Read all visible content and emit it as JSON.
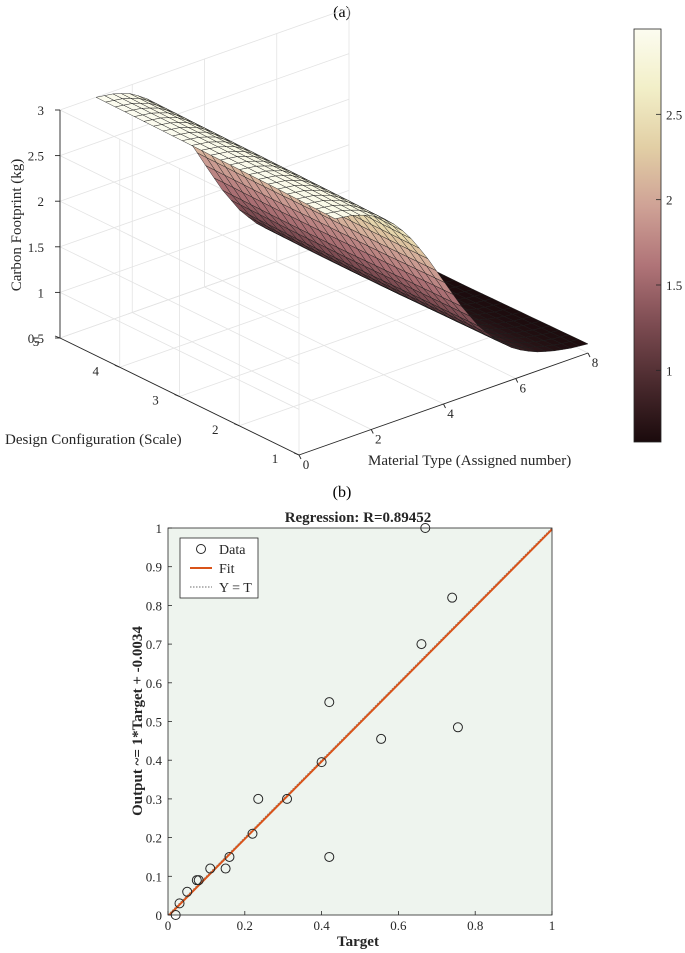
{
  "chart_data": [
    {
      "type": "surface",
      "panel_label": "(a)",
      "title": "",
      "xlabel": "Material Type (Assigned number)",
      "ylabel": "Design Configuration (Scale)",
      "zlabel": "Carbon Footprint (kg)",
      "xlim": [
        0,
        8
      ],
      "ylim": [
        1,
        5
      ],
      "zlim": [
        0.5,
        3
      ],
      "x_ticks": [
        "0",
        "2",
        "4",
        "6",
        "8"
      ],
      "y_ticks": [
        "1",
        "2",
        "3",
        "4",
        "5"
      ],
      "z_ticks": [
        "0.5",
        "1",
        "1.5",
        "2",
        "2.5",
        "3"
      ],
      "surface": {
        "x": [
          1,
          1.5,
          2,
          2.5,
          3,
          3.5,
          4,
          4.5,
          5,
          5.5,
          6,
          6.5,
          7,
          7.5,
          8
        ],
        "y_rows": [
          {
            "y": 1,
            "z": [
              2.95,
              2.92,
              2.85,
              2.72,
              2.5,
              2.2,
              1.85,
              1.5,
              1.2,
              0.98,
              0.82,
              0.72,
              0.66,
              0.62,
              0.6
            ]
          },
          {
            "y": 2,
            "z": [
              2.97,
              2.94,
              2.87,
              2.73,
              2.51,
              2.2,
              1.84,
              1.49,
              1.19,
              0.97,
              0.81,
              0.71,
              0.65,
              0.61,
              0.59
            ]
          },
          {
            "y": 3,
            "z": [
              2.98,
              2.95,
              2.88,
              2.74,
              2.52,
              2.21,
              1.84,
              1.48,
              1.18,
              0.96,
              0.8,
              0.7,
              0.64,
              0.6,
              0.58
            ]
          },
          {
            "y": 4,
            "z": [
              2.99,
              2.96,
              2.89,
              2.75,
              2.52,
              2.21,
              1.84,
              1.48,
              1.18,
              0.96,
              0.8,
              0.7,
              0.64,
              0.6,
              0.58
            ]
          },
          {
            "y": 5,
            "z": [
              3.0,
              2.97,
              2.9,
              2.76,
              2.53,
              2.22,
              1.85,
              1.49,
              1.19,
              0.97,
              0.81,
              0.71,
              0.65,
              0.61,
              0.59
            ]
          }
        ]
      },
      "colorbar": {
        "range": [
          0.58,
          3.0
        ],
        "ticks": [
          "1",
          "1.5",
          "2",
          "2.5"
        ],
        "tick_values": [
          1,
          1.5,
          2,
          2.5
        ],
        "colormap": [
          "#1a0a0c",
          "#4a2a2e",
          "#7d4c52",
          "#b07478",
          "#cfa296",
          "#e2cfa5",
          "#f2efc8",
          "#fcfcf0"
        ]
      }
    },
    {
      "type": "scatter",
      "panel_label": "(b)",
      "title": "Regression: R=0.89452",
      "xlabel": "Target",
      "ylabel": "Output ~= 1*Target + -0.0034",
      "xlim": [
        0,
        1
      ],
      "ylim": [
        0,
        1
      ],
      "x_ticks": [
        "0",
        "0.2",
        "0.4",
        "0.6",
        "0.8",
        "1"
      ],
      "x_tick_values": [
        0,
        0.2,
        0.4,
        0.6,
        0.8,
        1
      ],
      "y_ticks": [
        "0",
        "0.1",
        "0.2",
        "0.3",
        "0.4",
        "0.5",
        "0.6",
        "0.7",
        "0.8",
        "0.9",
        "1"
      ],
      "y_tick_values": [
        0,
        0.1,
        0.2,
        0.3,
        0.4,
        0.5,
        0.6,
        0.7,
        0.8,
        0.9,
        1
      ],
      "background": "#eef4ee",
      "points": [
        {
          "x": 0.02,
          "y": 0.0
        },
        {
          "x": 0.03,
          "y": 0.03
        },
        {
          "x": 0.05,
          "y": 0.06
        },
        {
          "x": 0.075,
          "y": 0.09
        },
        {
          "x": 0.08,
          "y": 0.09
        },
        {
          "x": 0.11,
          "y": 0.12
        },
        {
          "x": 0.15,
          "y": 0.12
        },
        {
          "x": 0.16,
          "y": 0.15
        },
        {
          "x": 0.22,
          "y": 0.21
        },
        {
          "x": 0.235,
          "y": 0.3
        },
        {
          "x": 0.31,
          "y": 0.3
        },
        {
          "x": 0.4,
          "y": 0.395
        },
        {
          "x": 0.42,
          "y": 0.55
        },
        {
          "x": 0.42,
          "y": 0.15
        },
        {
          "x": 0.555,
          "y": 0.455
        },
        {
          "x": 0.66,
          "y": 0.7
        },
        {
          "x": 0.67,
          "y": 1.0
        },
        {
          "x": 0.74,
          "y": 0.82
        },
        {
          "x": 0.755,
          "y": 0.485
        }
      ],
      "fit": {
        "slope": 1,
        "intercept": -0.0034,
        "color": "#d95319"
      },
      "identity_line_color": "#8a8a8a",
      "legend": {
        "position": "top-left",
        "entries": [
          "Data",
          "Fit",
          "Y = T"
        ]
      }
    }
  ]
}
